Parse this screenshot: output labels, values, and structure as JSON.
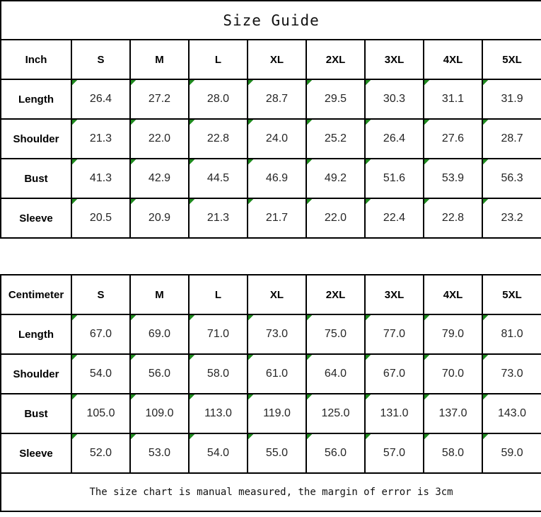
{
  "title": "Size Guide",
  "footer_note": "The size chart is manual measured, the margin of error is 3cm",
  "colors": {
    "border": "#000000",
    "cell_flag_indicator": "#1f8a1f",
    "background": "#ffffff"
  },
  "tables": [
    {
      "unit_label": "Inch",
      "size_headers": [
        "S",
        "M",
        "L",
        "XL",
        "2XL",
        "3XL",
        "4XL",
        "5XL"
      ],
      "rows": [
        {
          "label": "Length",
          "values": [
            "26.4",
            "27.2",
            "28.0",
            "28.7",
            "29.5",
            "30.3",
            "31.1",
            "31.9"
          ]
        },
        {
          "label": "Shoulder",
          "values": [
            "21.3",
            "22.0",
            "22.8",
            "24.0",
            "25.2",
            "26.4",
            "27.6",
            "28.7"
          ]
        },
        {
          "label": "Bust",
          "values": [
            "41.3",
            "42.9",
            "44.5",
            "46.9",
            "49.2",
            "51.6",
            "53.9",
            "56.3"
          ]
        },
        {
          "label": "Sleeve",
          "values": [
            "20.5",
            "20.9",
            "21.3",
            "21.7",
            "22.0",
            "22.4",
            "22.8",
            "23.2"
          ]
        }
      ]
    },
    {
      "unit_label": "Centimeter",
      "size_headers": [
        "S",
        "M",
        "L",
        "XL",
        "2XL",
        "3XL",
        "4XL",
        "5XL"
      ],
      "rows": [
        {
          "label": "Length",
          "values": [
            "67.0",
            "69.0",
            "71.0",
            "73.0",
            "75.0",
            "77.0",
            "79.0",
            "81.0"
          ]
        },
        {
          "label": "Shoulder",
          "values": [
            "54.0",
            "56.0",
            "58.0",
            "61.0",
            "64.0",
            "67.0",
            "70.0",
            "73.0"
          ]
        },
        {
          "label": "Bust",
          "values": [
            "105.0",
            "109.0",
            "113.0",
            "119.0",
            "125.0",
            "131.0",
            "137.0",
            "143.0"
          ]
        },
        {
          "label": "Sleeve",
          "values": [
            "52.0",
            "53.0",
            "54.0",
            "55.0",
            "56.0",
            "57.0",
            "58.0",
            "59.0"
          ]
        }
      ]
    }
  ]
}
